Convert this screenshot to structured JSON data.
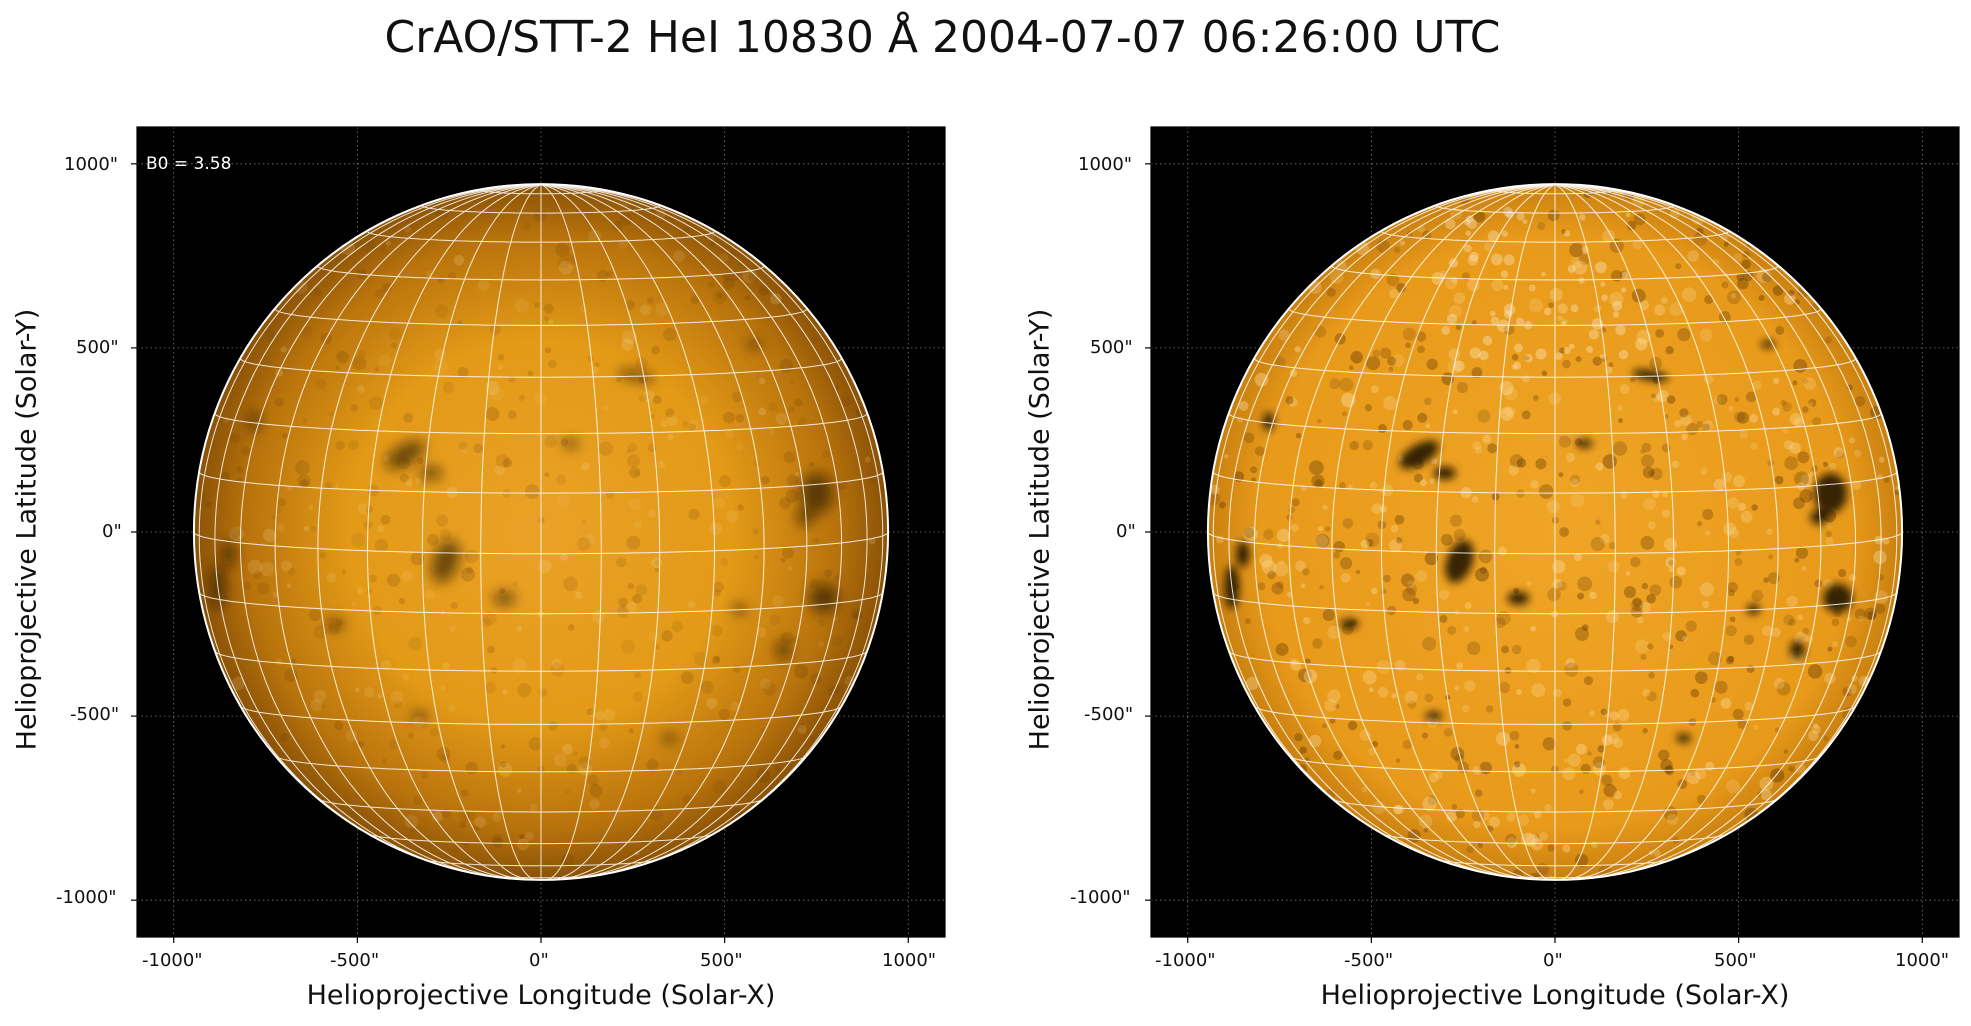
{
  "figure": {
    "title": "CrAO/STT-2 HeI 10830 Å 2004-07-07 06:26:00 UTC"
  },
  "panels": [
    {
      "name": "left",
      "annotation": "B0 = 3.58",
      "xlabel": "Helioprojective Longitude (Solar-X)",
      "ylabel": "Helioprojective Latitude (Solar-Y)",
      "xticks": [
        "-1000\"",
        "-500\"",
        "0\"",
        "500\"",
        "1000\""
      ],
      "yticks": [
        "1000\"",
        "500\"",
        "0\"",
        "-500\"",
        "-1000\""
      ],
      "contrast": "normal"
    },
    {
      "name": "right",
      "annotation": "",
      "xlabel": "Helioprojective Longitude (Solar-X)",
      "ylabel": "Helioprojective Latitude (Solar-Y)",
      "xticks": [
        "-1000\"",
        "-500\"",
        "0\"",
        "500\"",
        "1000\""
      ],
      "yticks": [
        "1000\"",
        "500\"",
        "0\"",
        "-500\"",
        "-1000\""
      ],
      "contrast": "enhanced"
    }
  ],
  "axis_range_arcsec": [
    -1100,
    1100
  ],
  "solar_radius_arcsec": 945,
  "b0_degrees": 3.58,
  "grid_spacing_degrees": 10,
  "colors": {
    "sun_center": "#e39a17",
    "sun_limb": "#8a5206",
    "background": "#000000",
    "grid": "#ffffff"
  }
}
